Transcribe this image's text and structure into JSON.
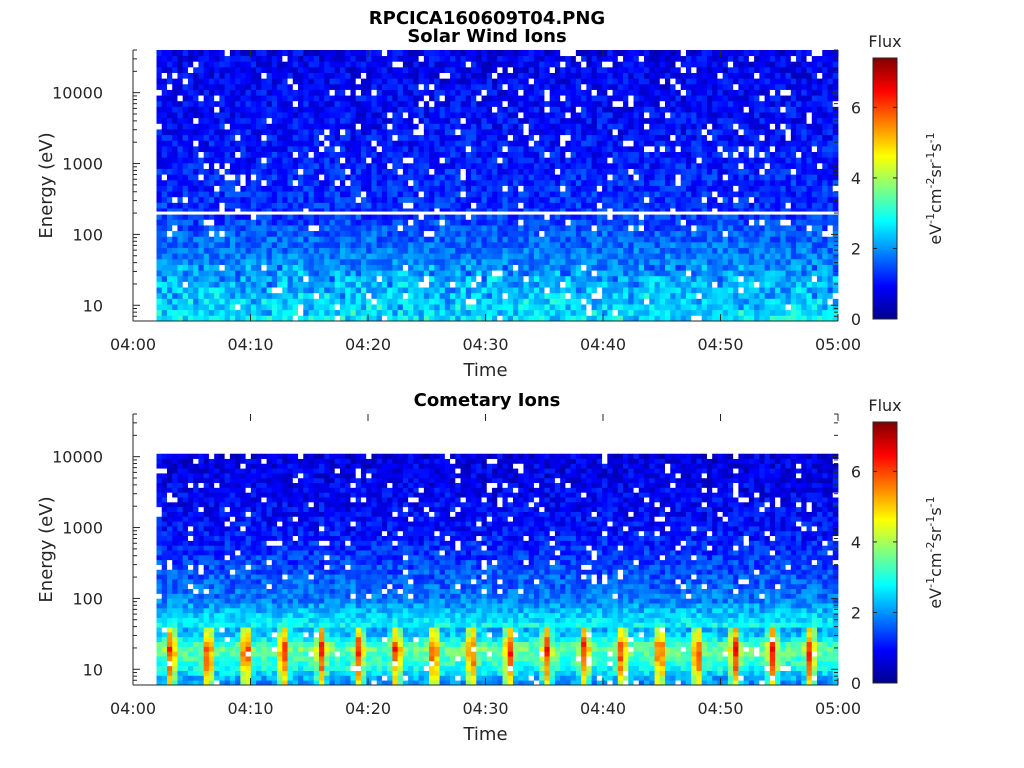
{
  "figure_title": "RPCICA160609T04.PNG",
  "chart_data": [
    {
      "type": "heatmap",
      "title": "Solar Wind Ions",
      "xlabel": "Time",
      "ylabel": "Energy (eV)",
      "x_ticks": [
        "04:00",
        "04:10",
        "04:20",
        "04:30",
        "04:40",
        "04:50",
        "05:00"
      ],
      "x_range": [
        "04:00",
        "05:00"
      ],
      "y_scale": "log",
      "y_ticks": [
        "10",
        "100",
        "1000",
        "10000"
      ],
      "y_range": [
        6,
        40000
      ],
      "data_x_start": "04:02",
      "data_y_range": [
        6,
        40000
      ],
      "gap_energy_eV": 200,
      "colorbar": {
        "title": "Flux",
        "label": "eV-1cm-2sr-1s-1",
        "ticks": [
          "0",
          "2",
          "4",
          "6"
        ],
        "range": [
          0,
          7.4
        ]
      },
      "flux_profile": [
        {
          "energy_eV": 7,
          "flux": 2.6
        },
        {
          "energy_eV": 12,
          "flux": 2.4
        },
        {
          "energy_eV": 30,
          "flux": 2.0
        },
        {
          "energy_eV": 100,
          "flux": 1.6
        },
        {
          "energy_eV": 200,
          "flux": 1.3
        },
        {
          "energy_eV": 1000,
          "flux": 1.1
        },
        {
          "energy_eV": 10000,
          "flux": 0.9
        },
        {
          "energy_eV": 40000,
          "flux": 0.8
        }
      ]
    },
    {
      "type": "heatmap",
      "title": "Cometary Ions",
      "xlabel": "Time",
      "ylabel": "Energy (eV)",
      "x_ticks": [
        "04:00",
        "04:10",
        "04:20",
        "04:30",
        "04:40",
        "04:50",
        "05:00"
      ],
      "x_range": [
        "04:00",
        "05:00"
      ],
      "y_scale": "log",
      "y_ticks": [
        "10",
        "100",
        "1000",
        "10000"
      ],
      "y_range": [
        6,
        40000
      ],
      "data_x_start": "04:02",
      "data_y_range": [
        6,
        11000
      ],
      "colorbar": {
        "title": "Flux",
        "label": "eV-1cm-2sr-1s-1",
        "ticks": [
          "0",
          "2",
          "4",
          "6"
        ],
        "range": [
          0,
          7.4
        ]
      },
      "flux_profile": [
        {
          "energy_eV": 7,
          "flux": 2.8
        },
        {
          "energy_eV": 10,
          "flux": 3.6
        },
        {
          "energy_eV": 20,
          "flux": 4.4
        },
        {
          "energy_eV": 30,
          "flux": 3.2
        },
        {
          "energy_eV": 100,
          "flux": 1.8
        },
        {
          "energy_eV": 1000,
          "flux": 1.0
        },
        {
          "energy_eV": 11000,
          "flux": 0.7
        }
      ],
      "burst_period_minutes": 3.2
    }
  ]
}
